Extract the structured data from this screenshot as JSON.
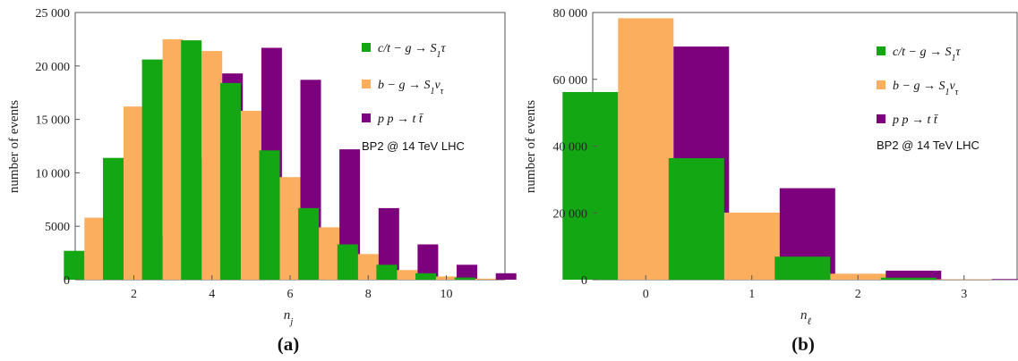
{
  "chart_data": [
    {
      "type": "bar",
      "panel_label": "(a)",
      "xlabel": "n_j",
      "ylabel": "number of events",
      "xlim": [
        0.5,
        11.5
      ],
      "ylim": [
        0,
        25000
      ],
      "x_ticks": [
        2,
        4,
        6,
        8,
        10
      ],
      "y_ticks": [
        0,
        5000,
        10000,
        15000,
        20000,
        25000
      ],
      "y_tick_labels": [
        "0",
        "5000",
        "10 000",
        "15 000",
        "20 000",
        "25 000"
      ],
      "annotation": "BP2 @ 14 TeV LHC",
      "categories": [
        1,
        2,
        3,
        4,
        5,
        6,
        7,
        8,
        9,
        10,
        11
      ],
      "series": [
        {
          "name": "c/t − g → S₁τ",
          "color": "#13a813",
          "values": [
            2700,
            11400,
            20600,
            22400,
            18400,
            12100,
            6700,
            3300,
            1400,
            600,
            200
          ]
        },
        {
          "name": "b − g → S₁ν_τ",
          "color": "#fbae5e",
          "values": [
            5800,
            16200,
            22500,
            21400,
            15800,
            9600,
            4900,
            2400,
            900,
            300,
            100
          ]
        },
        {
          "name": "p p → t t̄",
          "color": "#7d007d",
          "values": [
            400,
            4100,
            11400,
            19300,
            21700,
            18700,
            12200,
            6700,
            3300,
            1400,
            600
          ]
        }
      ]
    },
    {
      "type": "bar",
      "panel_label": "(b)",
      "xlabel": "n_ℓ",
      "ylabel": "number of events",
      "xlim": [
        -0.5,
        3.5
      ],
      "ylim": [
        0,
        80000
      ],
      "x_ticks": [
        0,
        1,
        2,
        3
      ],
      "y_ticks": [
        0,
        20000,
        40000,
        60000,
        80000
      ],
      "y_tick_labels": [
        "0",
        "20 000",
        "40 000",
        "60 000",
        "80 000"
      ],
      "annotation": "BP2 @ 14 TeV LHC",
      "categories": [
        0,
        1,
        2,
        3
      ],
      "series": [
        {
          "name": "c/t − g → S₁τ",
          "color": "#13a813",
          "values": [
            56200,
            36400,
            6900,
            600
          ]
        },
        {
          "name": "b − g → S₁ν_τ",
          "color": "#fbae5e",
          "values": [
            78300,
            20100,
            1800,
            100
          ]
        },
        {
          "name": "p p → t t̄",
          "color": "#7d007d",
          "values": [
            69800,
            27400,
            2700,
            200
          ]
        }
      ]
    }
  ]
}
